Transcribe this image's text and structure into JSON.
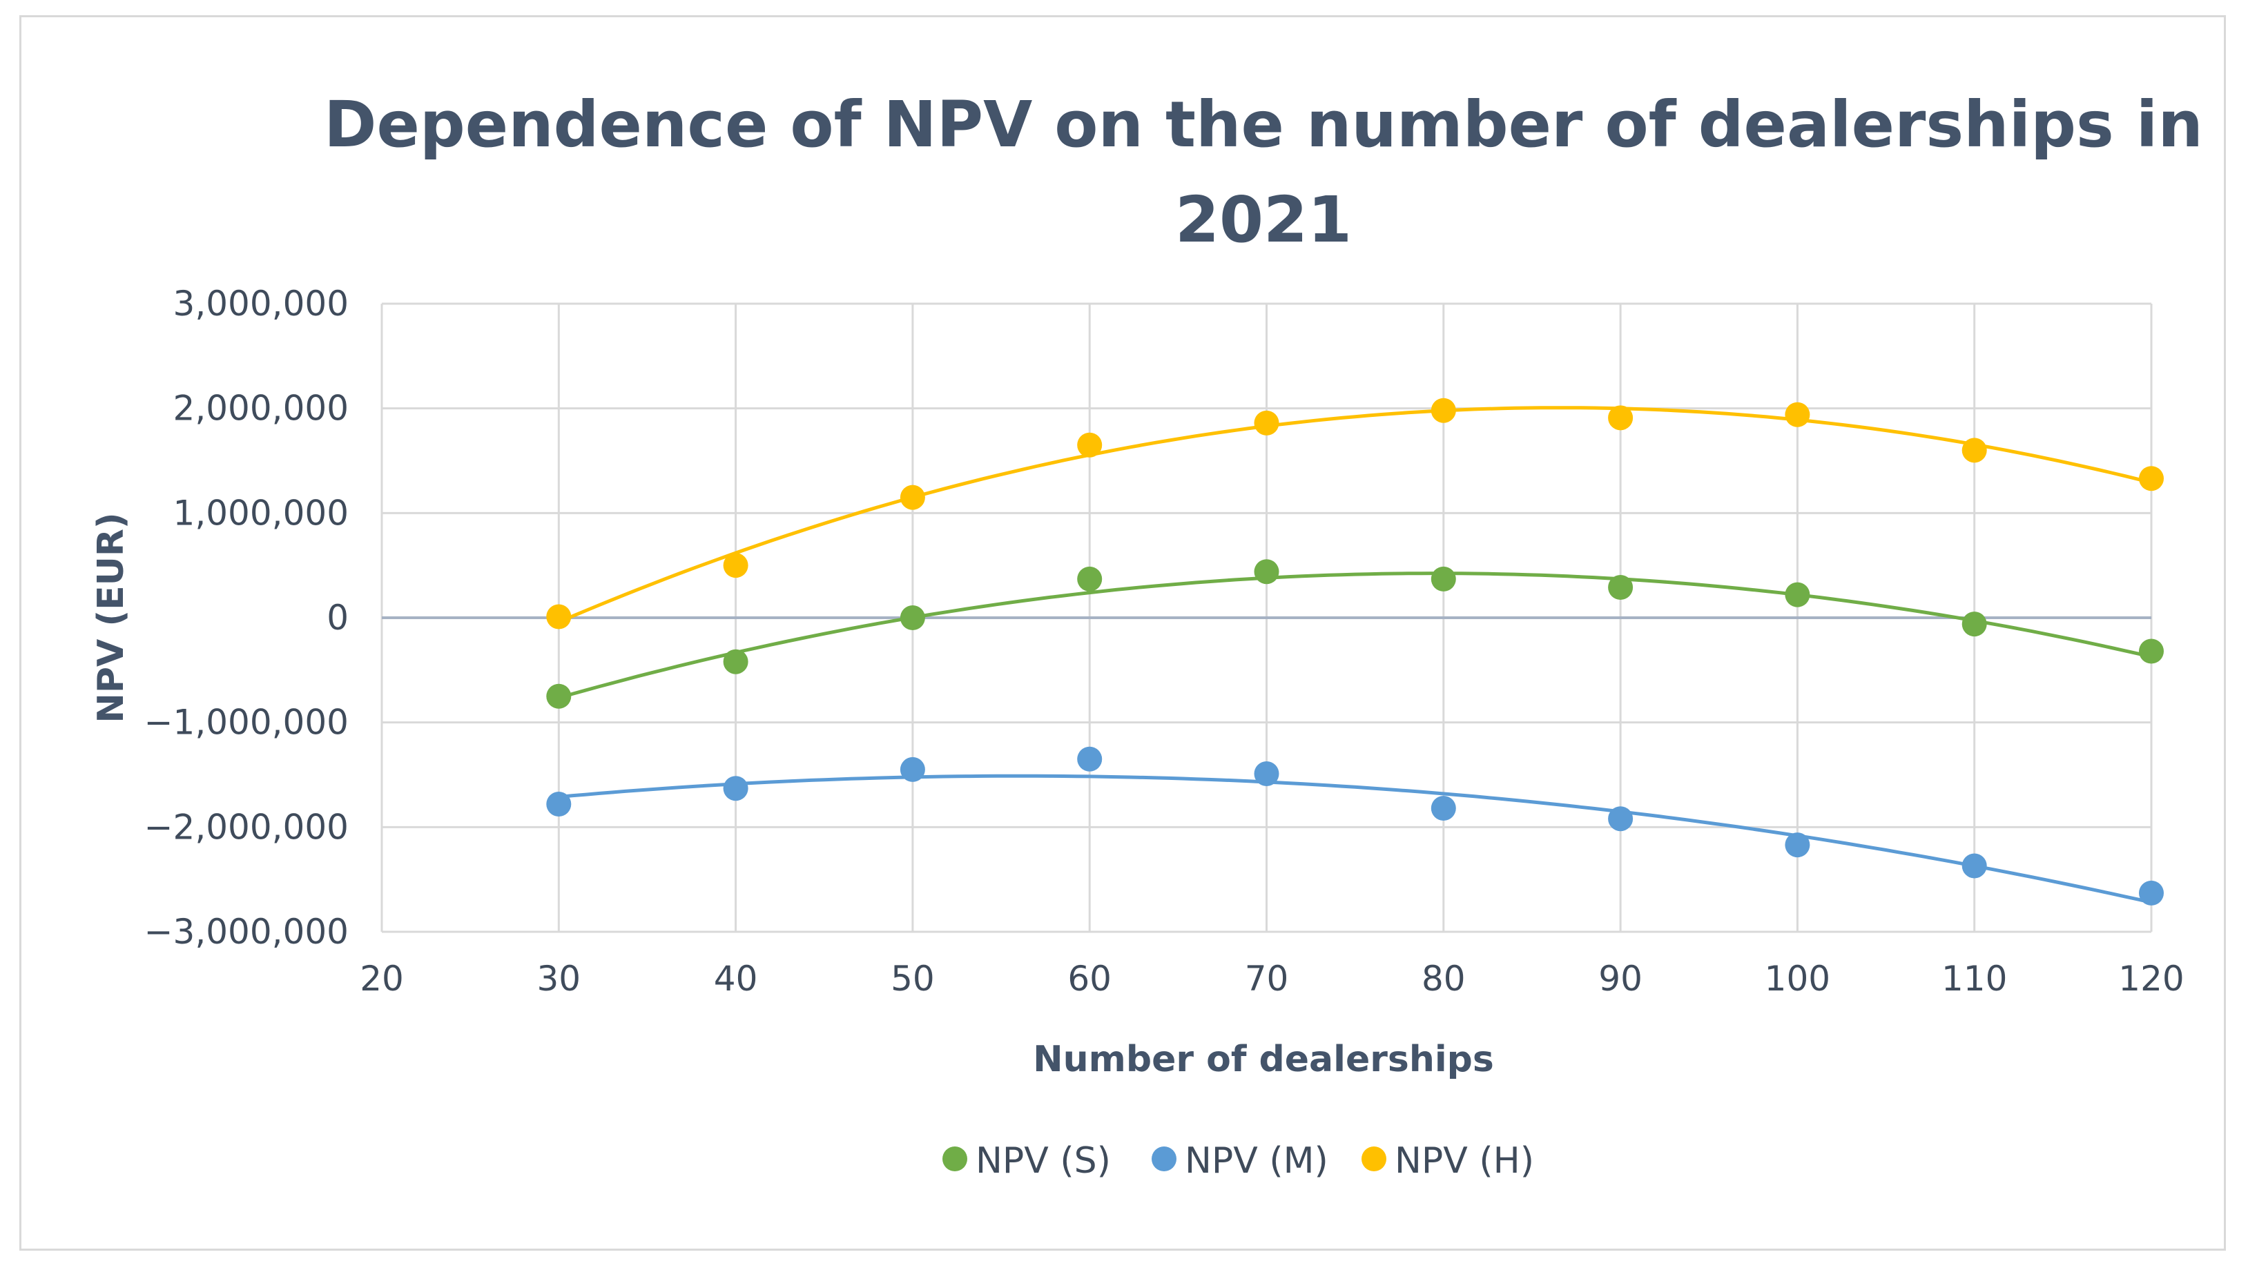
{
  "chart_data": {
    "type": "scatter",
    "title_lines": [
      "Dependence of NPV on the number of dealerships in",
      "2021"
    ],
    "xlabel": "Number of dealerships",
    "ylabel": "NPV (EUR)",
    "xlim": [
      20,
      120
    ],
    "ylim": [
      -3000000,
      3000000
    ],
    "x_ticks": [
      "20",
      "30",
      "40",
      "50",
      "60",
      "70",
      "80",
      "90",
      "100",
      "110",
      "120"
    ],
    "y_ticks": [
      "3,000,000",
      "2,000,000",
      "1,000,000",
      "0",
      "−1,000,000",
      "−2,000,000",
      "−3,000,000"
    ],
    "x_tick_values": [
      20,
      30,
      40,
      50,
      60,
      70,
      80,
      90,
      100,
      110,
      120
    ],
    "y_tick_values": [
      3000000,
      2000000,
      1000000,
      0,
      -1000000,
      -2000000,
      -3000000
    ],
    "grid": true,
    "legend_position": "bottom",
    "trendline": "polynomial (order 2)",
    "x": [
      30,
      40,
      50,
      60,
      70,
      80,
      90,
      100,
      110,
      120
    ],
    "series": [
      {
        "name": "NPV (S)",
        "color": "#70ad47",
        "values": [
          -750000,
          -420000,
          0,
          370000,
          440000,
          370000,
          290000,
          220000,
          -60000,
          -320000
        ]
      },
      {
        "name": "NPV (M)",
        "color": "#5b9bd5",
        "values": [
          -1780000,
          -1630000,
          -1450000,
          -1350000,
          -1490000,
          -1820000,
          -1920000,
          -2170000,
          -2370000,
          -2630000
        ]
      },
      {
        "name": "NPV (H)",
        "color": "#ffc000",
        "values": [
          10000,
          500000,
          1150000,
          1650000,
          1860000,
          1980000,
          1910000,
          1940000,
          1600000,
          1330000
        ]
      }
    ]
  }
}
